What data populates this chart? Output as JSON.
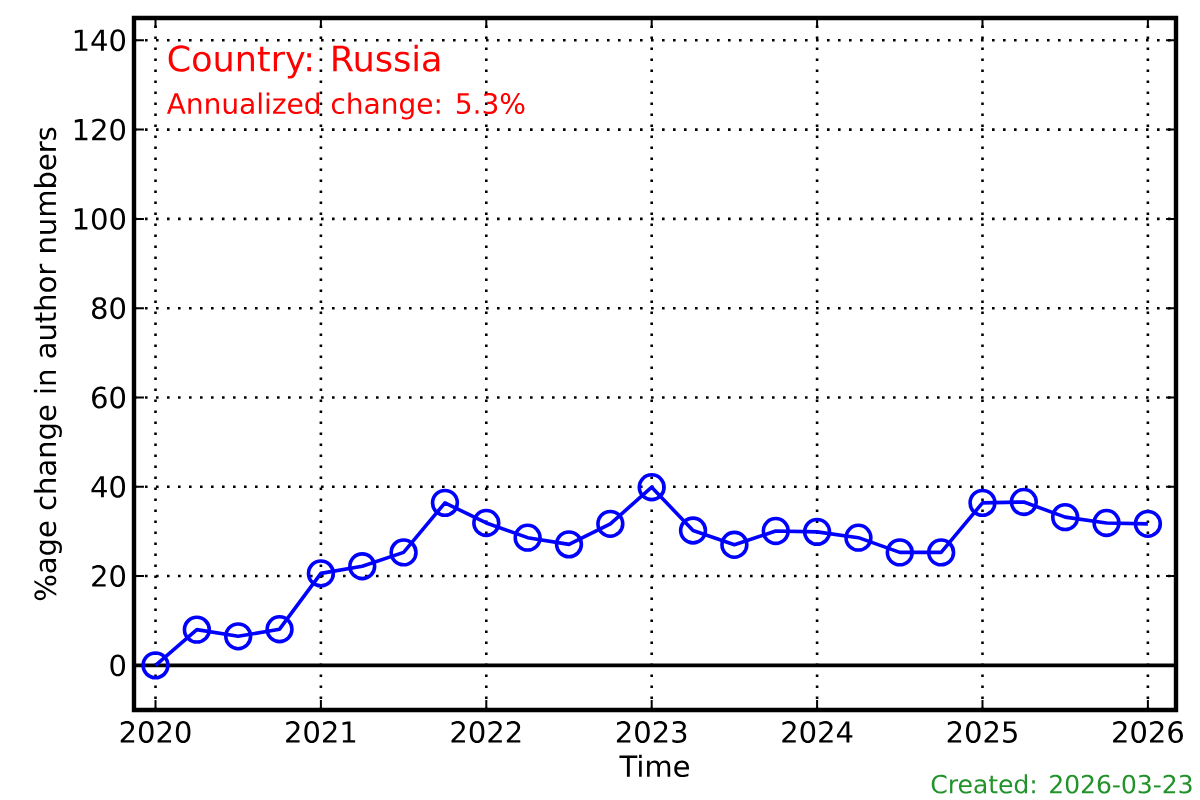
{
  "chart_data": {
    "type": "line",
    "title": "Country: Russia",
    "subtitle": "Annualized change: 5.3%",
    "xlabel": "Time",
    "ylabel": "%age change in author numbers",
    "annotations": [
      "Created: 2026-03-23"
    ],
    "x": [
      2020,
      2020.25,
      2020.5,
      2020.75,
      2021,
      2021.25,
      2021.5,
      2021.75,
      2022,
      2022.25,
      2022.5,
      2022.75,
      2023,
      2023.25,
      2023.5,
      2023.75,
      2024,
      2024.25,
      2024.5,
      2024.75,
      2025,
      2025.25,
      2025.5,
      2025.75,
      2026
    ],
    "series": [
      {
        "color": "#0000ff",
        "values": [
          0,
          8.0,
          6.5,
          8.1,
          20.6,
          22.2,
          25.3,
          36.4,
          31.9,
          28.6,
          27.1,
          31.7,
          39.9,
          30.2,
          27.0,
          30.1,
          29.9,
          28.6,
          25.3,
          25.3,
          36.4,
          36.6,
          33.2,
          31.9,
          31.7
        ]
      }
    ],
    "xlim": [
      2019.87,
      2026.17
    ],
    "ylim": [
      -10,
      145
    ],
    "xticks": [
      2020,
      2021,
      2022,
      2023,
      2024,
      2025,
      2026
    ],
    "yticks": [
      0,
      20,
      40,
      60,
      80,
      100,
      120,
      140
    ],
    "ref_lines": [
      {
        "axis": "y",
        "value": 0,
        "color": "#000000"
      }
    ],
    "grid": true,
    "marker": "circle",
    "line_style": "solid"
  }
}
